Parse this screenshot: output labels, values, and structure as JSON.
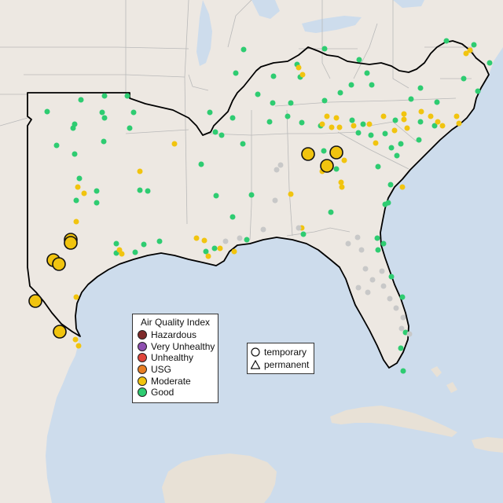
{
  "colors": {
    "water": "#cddcec",
    "land": "#ede8e2",
    "land_south": "#e8e1d6",
    "state_border": "#b9b9b9",
    "region_outline": "#000000"
  },
  "legend": {
    "title": "Air Quality Index",
    "items": [
      {
        "label": "Hazardous",
        "color": "#7e2a2a"
      },
      {
        "label": "Very Unhealthy",
        "color": "#8e4fb0"
      },
      {
        "label": "Unhealthy",
        "color": "#e0453a"
      },
      {
        "label": "USG",
        "color": "#e87f24"
      },
      {
        "label": "Moderate",
        "color": "#f1c40f"
      },
      {
        "label": "Good",
        "color": "#2ecc71"
      }
    ]
  },
  "monitor_types": {
    "items": [
      {
        "label": "temporary",
        "icon": "circle-icon"
      },
      {
        "label": "permanent",
        "icon": "triangle-icon"
      }
    ]
  },
  "inactive_color": "#c8c8c8"
}
